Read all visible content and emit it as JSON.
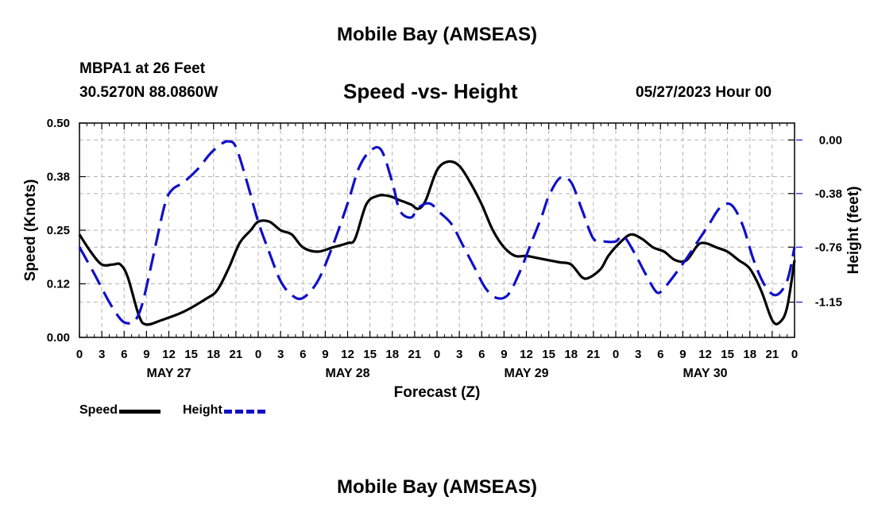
{
  "header": {
    "title": "Mobile Bay (AMSEAS)",
    "station": "MBPA1 at 26 Feet",
    "coords": "30.5270N  88.0860W",
    "subtitle": "Speed -vs- Height",
    "datetime": "05/27/2023 Hour 00"
  },
  "footer": {
    "title": "Mobile Bay (AMSEAS)"
  },
  "legend": {
    "speed_label": "Speed",
    "height_label": "Height"
  },
  "chart_data": {
    "type": "line",
    "title": "Speed -vs- Height",
    "xlabel": "Forecast (Z)",
    "ylabel": "Speed (Knots)",
    "y2label": "Height (feet)",
    "x_tick_labels": [
      "0",
      "3",
      "6",
      "9",
      "12",
      "15",
      "18",
      "21",
      "0",
      "3",
      "6",
      "9",
      "12",
      "15",
      "18",
      "21",
      "0",
      "3",
      "6",
      "9",
      "12",
      "15",
      "18",
      "21",
      "0",
      "3",
      "6",
      "9",
      "12",
      "15",
      "18",
      "21",
      "0"
    ],
    "date_labels": [
      "MAY 27",
      "MAY 28",
      "MAY 29",
      "MAY 30"
    ],
    "date_label_hours": [
      12,
      36,
      60,
      84
    ],
    "xlim": [
      0,
      96
    ],
    "ylim": [
      0,
      0.5
    ],
    "yticks": [
      0.0,
      0.125,
      0.25,
      0.375,
      0.5
    ],
    "ytick_labels": [
      "0.00",
      "0.12",
      "0.25",
      "0.38",
      "0.50"
    ],
    "y2lim": [
      -1.4,
      0.12
    ],
    "y2ticks": [
      0.0,
      -0.38,
      -0.76,
      -1.15
    ],
    "y2tick_labels": [
      "0.00",
      "-0.38",
      "-0.76",
      "-1.15"
    ],
    "grid": true,
    "legend_position": "bottom-left",
    "colors": {
      "speed": "#000000",
      "height": "#1010c8"
    },
    "series": [
      {
        "name": "Speed",
        "axis": "left",
        "style": "solid",
        "x": [
          0,
          1.5,
          3,
          4.5,
          5.5,
          6.5,
          8,
          9,
          11,
          14,
          17,
          18.5,
          20,
          21.5,
          23,
          24,
          25.5,
          27,
          28.5,
          30,
          32,
          34,
          36,
          37,
          38.5,
          40,
          41.5,
          43,
          44.5,
          45.5,
          46.5,
          48,
          49.5,
          51,
          52.5,
          54,
          55.5,
          57,
          58.5,
          60,
          61.5,
          63,
          64.5,
          66,
          67.5,
          68.5,
          70,
          71,
          72.5,
          74,
          75.5,
          77,
          78.5,
          80,
          81.5,
          83,
          84,
          85.5,
          87,
          88.5,
          90,
          91.5,
          93,
          94,
          95,
          96
        ],
        "y": [
          0.24,
          0.2,
          0.17,
          0.17,
          0.17,
          0.14,
          0.05,
          0.03,
          0.04,
          0.06,
          0.09,
          0.11,
          0.16,
          0.22,
          0.25,
          0.27,
          0.27,
          0.25,
          0.24,
          0.21,
          0.2,
          0.21,
          0.22,
          0.23,
          0.31,
          0.33,
          0.33,
          0.32,
          0.31,
          0.3,
          0.32,
          0.39,
          0.41,
          0.4,
          0.36,
          0.31,
          0.25,
          0.21,
          0.19,
          0.19,
          0.185,
          0.18,
          0.175,
          0.17,
          0.14,
          0.14,
          0.16,
          0.19,
          0.22,
          0.24,
          0.23,
          0.21,
          0.2,
          0.18,
          0.18,
          0.215,
          0.22,
          0.21,
          0.2,
          0.18,
          0.16,
          0.11,
          0.04,
          0.035,
          0.07,
          0.18
        ]
      },
      {
        "name": "Height",
        "axis": "right",
        "style": "dashed",
        "x": [
          0,
          2,
          4,
          5.5,
          6.5,
          7.5,
          8.5,
          10,
          11.5,
          12.5,
          14,
          16,
          17.5,
          19,
          20,
          21,
          22.5,
          24,
          25.5,
          27,
          28.5,
          30,
          32,
          34,
          36,
          37.5,
          39,
          40.5,
          42,
          43,
          44.5,
          45.5,
          47,
          48.5,
          50,
          51.5,
          53,
          54.5,
          56,
          57.5,
          59,
          60.5,
          62,
          63,
          64.5,
          66,
          67.5,
          69,
          70.5,
          72,
          73,
          74.5,
          76,
          77.5,
          78.5,
          80,
          81.5,
          83,
          84.5,
          86,
          87.5,
          89,
          90.5,
          92,
          93.5,
          95,
          96
        ],
        "y": [
          -0.76,
          -0.95,
          -1.15,
          -1.27,
          -1.3,
          -1.28,
          -1.15,
          -0.8,
          -0.45,
          -0.35,
          -0.3,
          -0.2,
          -0.1,
          -0.03,
          -0.01,
          -0.05,
          -0.3,
          -0.58,
          -0.8,
          -1.0,
          -1.1,
          -1.12,
          -1.0,
          -0.75,
          -0.45,
          -0.2,
          -0.08,
          -0.07,
          -0.3,
          -0.5,
          -0.55,
          -0.48,
          -0.45,
          -0.52,
          -0.6,
          -0.75,
          -0.9,
          -1.05,
          -1.12,
          -1.1,
          -0.95,
          -0.75,
          -0.55,
          -0.4,
          -0.27,
          -0.3,
          -0.5,
          -0.7,
          -0.72,
          -0.72,
          -0.68,
          -0.8,
          -0.95,
          -1.08,
          -1.05,
          -0.95,
          -0.84,
          -0.72,
          -0.6,
          -0.48,
          -0.46,
          -0.6,
          -0.85,
          -1.03,
          -1.1,
          -1.0,
          -0.76
        ]
      }
    ]
  }
}
